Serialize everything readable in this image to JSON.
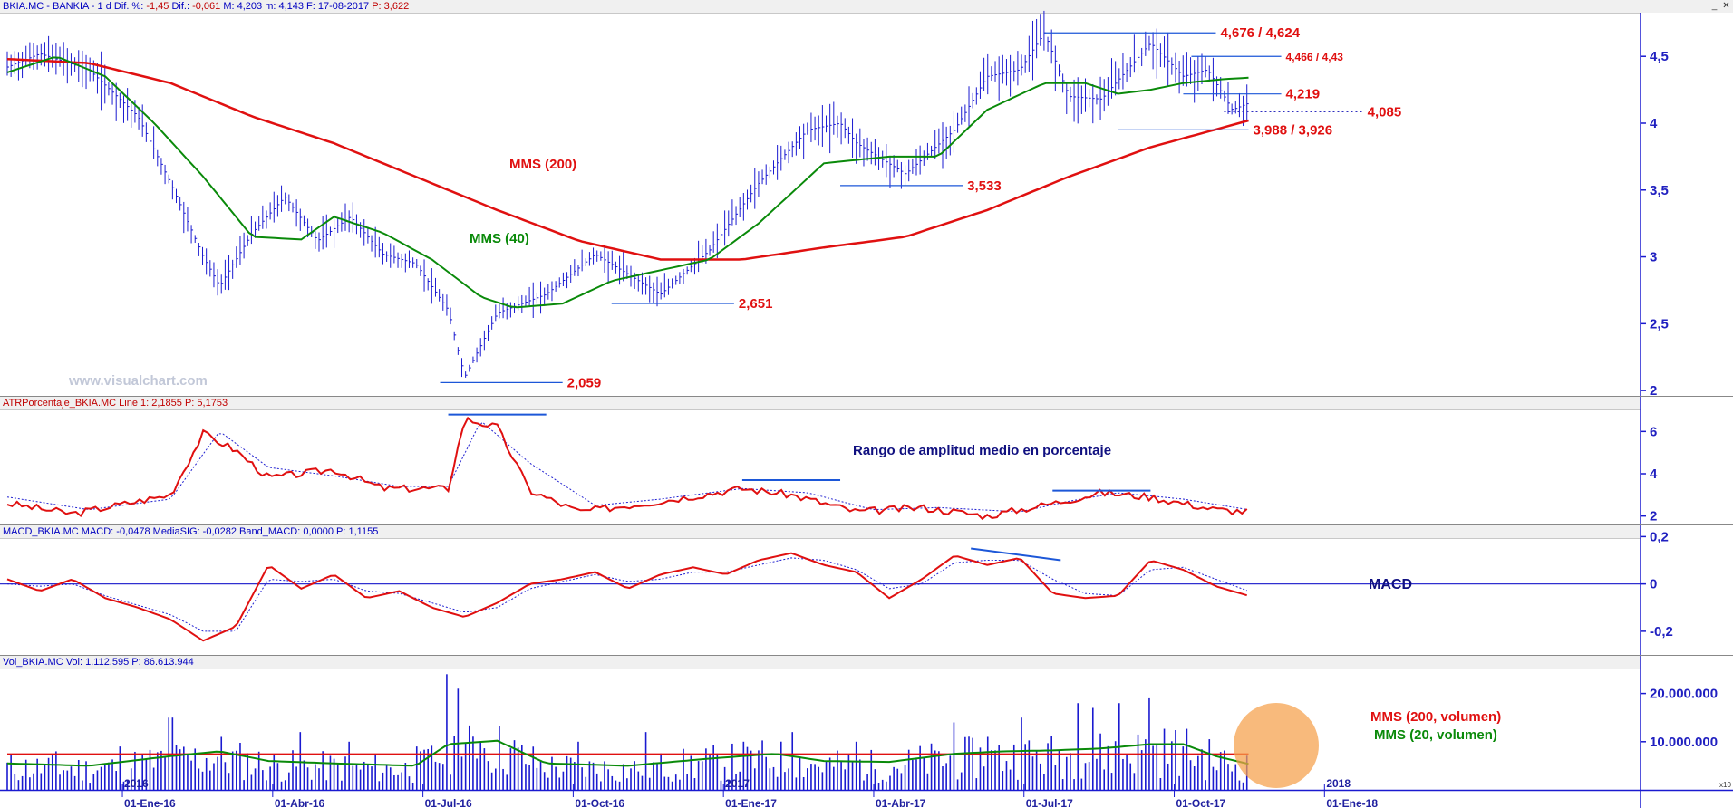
{
  "colors": {
    "price": "#1a1ad0",
    "sma200": "#e01010",
    "sma40": "#0a8a0a",
    "level": "#1c57d8",
    "label_red": "#e01010",
    "navy": "#101080",
    "dotted": "#3030c0",
    "highlight": "#f5a04a"
  },
  "panels": {
    "price": {
      "header": [
        {
          "t": "BKIA.MC - BANKIA - 1 d  Dif. %: ",
          "c": "blue"
        },
        {
          "t": "-1,45",
          "c": "red"
        },
        {
          "t": "  Dif.: ",
          "c": "blue"
        },
        {
          "t": "-0,061",
          "c": "red"
        },
        {
          "t": "  M: 4,203  m: 4,143  F: 17-08-2017  ",
          "c": "blue"
        },
        {
          "t": "P: 3,622",
          "c": "red"
        }
      ]
    },
    "atr": {
      "header": [
        {
          "t": "ATRPorcentaje_BKIA.MC  Line 1: 2,1855  ",
          "c": "red"
        },
        {
          "t": "P: 5,1753",
          "c": "red"
        }
      ]
    },
    "macd": {
      "header": [
        {
          "t": "MACD_BKIA.MC  MACD: -0,0478  MediaSIG: -0,0282  Band_MACD: 0,0000  P: 1,1155",
          "c": "blue"
        }
      ]
    },
    "vol": {
      "header": [
        {
          "t": "Vol_BKIA.MC  Vol: 1.112.595  P: 86.613.944",
          "c": "blue"
        }
      ]
    }
  },
  "labels": {
    "watermark": "www.visualchart.com",
    "mms200": "MMS (200)",
    "mms40": "MMS (40)",
    "atr_note": "Rango de amplitud medio en porcentaje",
    "macd_note": "MACD",
    "vol200": "MMS (200, volumen)",
    "vol20": "MMS (20, volumen)",
    "x10": "x10"
  },
  "chart_data": {
    "type": "bar",
    "title": "",
    "dates": [
      "01-Ene-16",
      "01-Abr-16",
      "01-Jul-16",
      "01-Oct-16",
      "01-Ene-17",
      "01-Abr-17",
      "01-Jul-17",
      "01-Oct-17",
      "01-Ene-18"
    ],
    "year_marks": [
      "2016",
      "2017",
      "2018"
    ],
    "price_axis": {
      "ticks": [
        "4,5",
        "4",
        "3,5",
        "3",
        "2,5",
        "2"
      ],
      "ylim": [
        1.96,
        4.82
      ]
    },
    "close_path": [
      [
        0,
        4.42
      ],
      [
        0.02,
        4.52
      ],
      [
        0.05,
        4.4
      ],
      [
        0.08,
        4.05
      ],
      [
        0.1,
        3.55
      ],
      [
        0.12,
        3.0
      ],
      [
        0.13,
        2.78
      ],
      [
        0.15,
        3.18
      ],
      [
        0.17,
        3.45
      ],
      [
        0.19,
        3.12
      ],
      [
        0.21,
        3.3
      ],
      [
        0.23,
        3.02
      ],
      [
        0.25,
        2.95
      ],
      [
        0.27,
        2.6
      ],
      [
        0.28,
        2.1
      ],
      [
        0.3,
        2.58
      ],
      [
        0.33,
        2.72
      ],
      [
        0.36,
        3.02
      ],
      [
        0.4,
        2.72
      ],
      [
        0.43,
        3.05
      ],
      [
        0.46,
        3.55
      ],
      [
        0.49,
        3.95
      ],
      [
        0.51,
        4.0
      ],
      [
        0.52,
        3.85
      ],
      [
        0.55,
        3.62
      ],
      [
        0.58,
        3.95
      ],
      [
        0.6,
        4.35
      ],
      [
        0.62,
        4.4
      ],
      [
        0.635,
        4.68
      ],
      [
        0.65,
        4.2
      ],
      [
        0.67,
        4.18
      ],
      [
        0.7,
        4.6
      ],
      [
        0.72,
        4.35
      ],
      [
        0.735,
        4.4
      ],
      [
        0.75,
        4.1
      ],
      [
        0.76,
        4.15
      ]
    ],
    "sma200_path": [
      [
        0,
        4.48
      ],
      [
        0.05,
        4.45
      ],
      [
        0.1,
        4.3
      ],
      [
        0.15,
        4.05
      ],
      [
        0.2,
        3.85
      ],
      [
        0.25,
        3.6
      ],
      [
        0.3,
        3.35
      ],
      [
        0.35,
        3.12
      ],
      [
        0.4,
        2.98
      ],
      [
        0.45,
        2.98
      ],
      [
        0.5,
        3.07
      ],
      [
        0.55,
        3.15
      ],
      [
        0.6,
        3.35
      ],
      [
        0.65,
        3.6
      ],
      [
        0.7,
        3.82
      ],
      [
        0.76,
        4.02
      ]
    ],
    "sma40_path": [
      [
        0,
        4.38
      ],
      [
        0.03,
        4.5
      ],
      [
        0.06,
        4.35
      ],
      [
        0.09,
        4.0
      ],
      [
        0.12,
        3.6
      ],
      [
        0.15,
        3.15
      ],
      [
        0.18,
        3.13
      ],
      [
        0.2,
        3.3
      ],
      [
        0.23,
        3.18
      ],
      [
        0.26,
        2.98
      ],
      [
        0.29,
        2.7
      ],
      [
        0.31,
        2.62
      ],
      [
        0.34,
        2.65
      ],
      [
        0.37,
        2.82
      ],
      [
        0.4,
        2.9
      ],
      [
        0.43,
        2.98
      ],
      [
        0.46,
        3.25
      ],
      [
        0.5,
        3.7
      ],
      [
        0.54,
        3.75
      ],
      [
        0.57,
        3.75
      ],
      [
        0.6,
        4.1
      ],
      [
        0.635,
        4.3
      ],
      [
        0.66,
        4.3
      ],
      [
        0.68,
        4.22
      ],
      [
        0.7,
        4.25
      ],
      [
        0.72,
        4.3
      ],
      [
        0.745,
        4.33
      ],
      [
        0.76,
        4.34
      ]
    ],
    "levels": [
      {
        "value": "4,676 / 4,624",
        "y": 4.676,
        "x0": 0.635,
        "x1": 0.74,
        "size": 15
      },
      {
        "value": "4,466 / 4,43",
        "y": 4.5,
        "x0": 0.725,
        "x1": 0.78,
        "size": 12
      },
      {
        "value": "4,219",
        "y": 4.219,
        "x0": 0.72,
        "x1": 0.78,
        "size": 15
      },
      {
        "value": "4,085",
        "y": 4.085,
        "x0": 0.745,
        "x1": 0.83,
        "size": 15,
        "dotted": true
      },
      {
        "value": "3,988 / 3,926",
        "y": 3.95,
        "x0": 0.68,
        "x1": 0.76,
        "size": 15
      },
      {
        "value": "3,533",
        "y": 3.533,
        "x0": 0.51,
        "x1": 0.585,
        "size": 15
      },
      {
        "value": "2,651",
        "y": 2.651,
        "x0": 0.37,
        "x1": 0.445,
        "size": 15
      },
      {
        "value": "2,059",
        "y": 2.059,
        "x0": 0.265,
        "x1": 0.34,
        "size": 15
      }
    ],
    "atr_axis": {
      "ticks": [
        "6",
        "4",
        "2"
      ],
      "ylim": [
        1.6,
        7.0
      ]
    },
    "atr_path": [
      [
        0,
        2.6
      ],
      [
        0.04,
        2.1
      ],
      [
        0.08,
        2.7
      ],
      [
        0.1,
        3.0
      ],
      [
        0.12,
        5.9
      ],
      [
        0.14,
        5.1
      ],
      [
        0.16,
        3.8
      ],
      [
        0.2,
        4.2
      ],
      [
        0.23,
        3.3
      ],
      [
        0.27,
        3.3
      ],
      [
        0.28,
        6.6
      ],
      [
        0.3,
        6.2
      ],
      [
        0.32,
        3.2
      ],
      [
        0.35,
        2.2
      ],
      [
        0.4,
        2.7
      ],
      [
        0.45,
        3.3
      ],
      [
        0.48,
        3.0
      ],
      [
        0.52,
        2.2
      ],
      [
        0.56,
        2.4
      ],
      [
        0.6,
        2.0
      ],
      [
        0.64,
        2.6
      ],
      [
        0.67,
        3.1
      ],
      [
        0.7,
        2.9
      ],
      [
        0.74,
        2.3
      ],
      [
        0.76,
        2.2
      ]
    ],
    "atr_signal_path": [
      [
        0,
        2.9
      ],
      [
        0.05,
        2.3
      ],
      [
        0.1,
        2.8
      ],
      [
        0.13,
        6.0
      ],
      [
        0.16,
        4.3
      ],
      [
        0.2,
        3.9
      ],
      [
        0.24,
        3.4
      ],
      [
        0.27,
        3.4
      ],
      [
        0.29,
        6.5
      ],
      [
        0.32,
        4.5
      ],
      [
        0.36,
        2.5
      ],
      [
        0.4,
        2.8
      ],
      [
        0.45,
        3.3
      ],
      [
        0.49,
        3.1
      ],
      [
        0.53,
        2.3
      ],
      [
        0.57,
        2.4
      ],
      [
        0.62,
        2.2
      ],
      [
        0.65,
        2.7
      ],
      [
        0.68,
        3.1
      ],
      [
        0.72,
        2.8
      ],
      [
        0.76,
        2.3
      ]
    ],
    "atr_highs": [
      {
        "x0": 0.27,
        "x1": 0.33,
        "y": 6.8
      },
      {
        "x0": 0.45,
        "x1": 0.51,
        "y": 3.7
      },
      {
        "x0": 0.64,
        "x1": 0.7,
        "y": 3.2
      }
    ],
    "macd_axis": {
      "ticks": [
        "0,2",
        "0",
        "-0,2"
      ],
      "ylim": [
        -0.3,
        0.19
      ]
    },
    "macd_path": [
      [
        0,
        0.02
      ],
      [
        0.02,
        -0.03
      ],
      [
        0.04,
        0.02
      ],
      [
        0.06,
        -0.06
      ],
      [
        0.08,
        -0.1
      ],
      [
        0.1,
        -0.15
      ],
      [
        0.12,
        -0.24
      ],
      [
        0.14,
        -0.18
      ],
      [
        0.16,
        0.08
      ],
      [
        0.18,
        -0.02
      ],
      [
        0.2,
        0.04
      ],
      [
        0.22,
        -0.06
      ],
      [
        0.24,
        -0.03
      ],
      [
        0.26,
        -0.1
      ],
      [
        0.28,
        -0.14
      ],
      [
        0.3,
        -0.08
      ],
      [
        0.32,
        0.0
      ],
      [
        0.34,
        0.02
      ],
      [
        0.36,
        0.05
      ],
      [
        0.38,
        -0.02
      ],
      [
        0.4,
        0.04
      ],
      [
        0.42,
        0.07
      ],
      [
        0.44,
        0.04
      ],
      [
        0.46,
        0.1
      ],
      [
        0.48,
        0.13
      ],
      [
        0.5,
        0.08
      ],
      [
        0.52,
        0.05
      ],
      [
        0.54,
        -0.06
      ],
      [
        0.56,
        0.02
      ],
      [
        0.58,
        0.12
      ],
      [
        0.6,
        0.08
      ],
      [
        0.62,
        0.11
      ],
      [
        0.64,
        -0.04
      ],
      [
        0.66,
        -0.06
      ],
      [
        0.68,
        -0.05
      ],
      [
        0.7,
        0.1
      ],
      [
        0.72,
        0.06
      ],
      [
        0.74,
        -0.01
      ],
      [
        0.76,
        -0.05
      ]
    ],
    "macd_signal_path": [
      [
        0,
        0.0
      ],
      [
        0.02,
        -0.01
      ],
      [
        0.04,
        0.0
      ],
      [
        0.06,
        -0.05
      ],
      [
        0.08,
        -0.09
      ],
      [
        0.1,
        -0.13
      ],
      [
        0.12,
        -0.2
      ],
      [
        0.14,
        -0.2
      ],
      [
        0.16,
        0.02
      ],
      [
        0.18,
        0.01
      ],
      [
        0.2,
        0.02
      ],
      [
        0.22,
        -0.03
      ],
      [
        0.24,
        -0.04
      ],
      [
        0.26,
        -0.08
      ],
      [
        0.28,
        -0.12
      ],
      [
        0.3,
        -0.1
      ],
      [
        0.32,
        -0.02
      ],
      [
        0.34,
        0.01
      ],
      [
        0.36,
        0.04
      ],
      [
        0.38,
        0.01
      ],
      [
        0.4,
        0.02
      ],
      [
        0.42,
        0.05
      ],
      [
        0.44,
        0.05
      ],
      [
        0.46,
        0.08
      ],
      [
        0.48,
        0.11
      ],
      [
        0.5,
        0.1
      ],
      [
        0.52,
        0.06
      ],
      [
        0.54,
        -0.02
      ],
      [
        0.56,
        0.0
      ],
      [
        0.58,
        0.09
      ],
      [
        0.6,
        0.1
      ],
      [
        0.62,
        0.1
      ],
      [
        0.64,
        0.02
      ],
      [
        0.66,
        -0.04
      ],
      [
        0.68,
        -0.05
      ],
      [
        0.7,
        0.06
      ],
      [
        0.72,
        0.07
      ],
      [
        0.74,
        0.02
      ],
      [
        0.76,
        -0.03
      ]
    ],
    "macd_trend": {
      "x0": 0.59,
      "y0": 0.15,
      "x1": 0.645,
      "y1": 0.1
    },
    "vol_axis": {
      "ticks": [
        "20.000.000",
        "10.000.000"
      ],
      "ylim": [
        0,
        25000000
      ]
    },
    "vol_peaks": [
      [
        0.03,
        8000000
      ],
      [
        0.07,
        9000000
      ],
      [
        0.1,
        15000000
      ],
      [
        0.13,
        11000000
      ],
      [
        0.18,
        12000000
      ],
      [
        0.21,
        10000000
      ],
      [
        0.25,
        9000000
      ],
      [
        0.27,
        24000000
      ],
      [
        0.275,
        21000000
      ],
      [
        0.29,
        10000000
      ],
      [
        0.35,
        10000000
      ],
      [
        0.39,
        12000000
      ],
      [
        0.45,
        10000000
      ],
      [
        0.48,
        12000000
      ],
      [
        0.52,
        10000000
      ],
      [
        0.58,
        14000000
      ],
      [
        0.6,
        11000000
      ],
      [
        0.62,
        15000000
      ],
      [
        0.655,
        18000000
      ],
      [
        0.665,
        17000000
      ],
      [
        0.68,
        18000000
      ],
      [
        0.7,
        19000000
      ],
      [
        0.72,
        9000000
      ]
    ],
    "vol_sma200": 7400000,
    "vol_sma20_path": [
      [
        0,
        5500000
      ],
      [
        0.05,
        5000000
      ],
      [
        0.1,
        7000000
      ],
      [
        0.13,
        8000000
      ],
      [
        0.16,
        6000000
      ],
      [
        0.2,
        5500000
      ],
      [
        0.25,
        5000000
      ],
      [
        0.27,
        9500000
      ],
      [
        0.3,
        10200000
      ],
      [
        0.33,
        5500000
      ],
      [
        0.38,
        5000000
      ],
      [
        0.43,
        6500000
      ],
      [
        0.47,
        7500000
      ],
      [
        0.5,
        6000000
      ],
      [
        0.54,
        5800000
      ],
      [
        0.58,
        7500000
      ],
      [
        0.61,
        8000000
      ],
      [
        0.64,
        8200000
      ],
      [
        0.67,
        8600000
      ],
      [
        0.7,
        9500000
      ],
      [
        0.72,
        9500000
      ],
      [
        0.74,
        7000000
      ],
      [
        0.76,
        5400000
      ]
    ]
  }
}
